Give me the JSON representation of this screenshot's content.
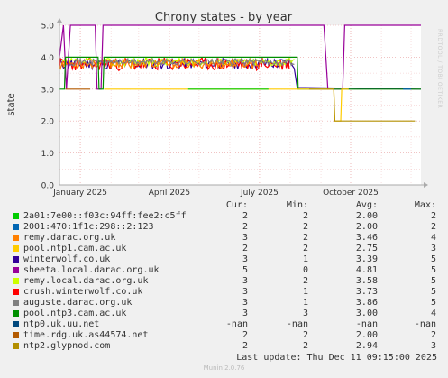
{
  "chart_data": {
    "type": "line",
    "title": "Chrony states - by year",
    "ylabel": "state",
    "xlabel": "",
    "ylim": [
      0,
      5
    ],
    "yticks": [
      "0.0",
      "1.0",
      "2.0",
      "3.0",
      "4.0",
      "5.0"
    ],
    "xlim": [
      "2024-12-11",
      "2025-12-11"
    ],
    "xticks": [
      {
        "label": "January 2025",
        "date": "2025-01-01"
      },
      {
        "label": "April 2025",
        "date": "2025-04-01"
      },
      {
        "label": "July 2025",
        "date": "2025-07-01"
      },
      {
        "label": "October 2025",
        "date": "2025-10-01"
      }
    ],
    "grid": true,
    "legend_position": "bottom",
    "series": [
      {
        "name": "2a01:7e00::f03c:94ff:fee2:c5ff",
        "color": "#00cc00"
      },
      {
        "name": "2001:470:1f1c:298::2:123",
        "color": "#0066b3"
      },
      {
        "name": "remy.darac.org.uk",
        "color": "#ff8000"
      },
      {
        "name": "pool.ntp1.cam.ac.uk",
        "color": "#ffcc00"
      },
      {
        "name": "winterwolf.co.uk",
        "color": "#330099"
      },
      {
        "name": "sheeta.local.darac.org.uk",
        "color": "#990099"
      },
      {
        "name": "remy.local.darac.org.uk",
        "color": "#ccff00"
      },
      {
        "name": "crush.winterwolf.co.uk",
        "color": "#ff0000"
      },
      {
        "name": "auguste.darac.org.uk",
        "color": "#808080"
      },
      {
        "name": "pool.ntp3.cam.ac.uk",
        "color": "#008f00"
      },
      {
        "name": "ntp0.uk.uu.net",
        "color": "#00487d"
      },
      {
        "name": "time.rdg.uk.as44574.net",
        "color": "#b35a00"
      },
      {
        "name": "ntp2.glypnod.com",
        "color": "#b38f00"
      }
    ]
  },
  "legend": {
    "header": {
      "cur": "Cur:",
      "min": "Min:",
      "avg": "Avg:",
      "max": "Max:"
    },
    "rows": [
      {
        "label": "2a01:7e00::f03c:94ff:fee2:c5ff",
        "cur": "2",
        "min": "2",
        "avg": "2.00",
        "max": "2"
      },
      {
        "label": "2001:470:1f1c:298::2:123",
        "cur": "2",
        "min": "2",
        "avg": "2.00",
        "max": "2"
      },
      {
        "label": "remy.darac.org.uk",
        "cur": "3",
        "min": "2",
        "avg": "3.46",
        "max": "4"
      },
      {
        "label": "pool.ntp1.cam.ac.uk",
        "cur": "2",
        "min": "2",
        "avg": "2.75",
        "max": "3"
      },
      {
        "label": "winterwolf.co.uk",
        "cur": "3",
        "min": "1",
        "avg": "3.39",
        "max": "5"
      },
      {
        "label": "sheeta.local.darac.org.uk",
        "cur": "5",
        "min": "0",
        "avg": "4.81",
        "max": "5"
      },
      {
        "label": "remy.local.darac.org.uk",
        "cur": "3",
        "min": "2",
        "avg": "3.58",
        "max": "5"
      },
      {
        "label": "crush.winterwolf.co.uk",
        "cur": "3",
        "min": "1",
        "avg": "3.73",
        "max": "5"
      },
      {
        "label": "auguste.darac.org.uk",
        "cur": "3",
        "min": "1",
        "avg": "3.86",
        "max": "5"
      },
      {
        "label": "pool.ntp3.cam.ac.uk",
        "cur": "3",
        "min": "3",
        "avg": "3.00",
        "max": "4"
      },
      {
        "label": "ntp0.uk.uu.net",
        "cur": "-nan",
        "min": "-nan",
        "avg": "-nan",
        "max": "-nan"
      },
      {
        "label": "time.rdg.uk.as44574.net",
        "cur": "2",
        "min": "2",
        "avg": "2.00",
        "max": "2"
      },
      {
        "label": "ntp2.glypnod.com",
        "cur": "2",
        "min": "2",
        "avg": "2.94",
        "max": "3"
      }
    ]
  },
  "footer": {
    "last_update": "Last update: Thu Dec 11 09:15:00 2025",
    "munin_version": "Munin 2.0.76",
    "rrd_label": "RRDTOOL / TOBI OETIKER"
  }
}
